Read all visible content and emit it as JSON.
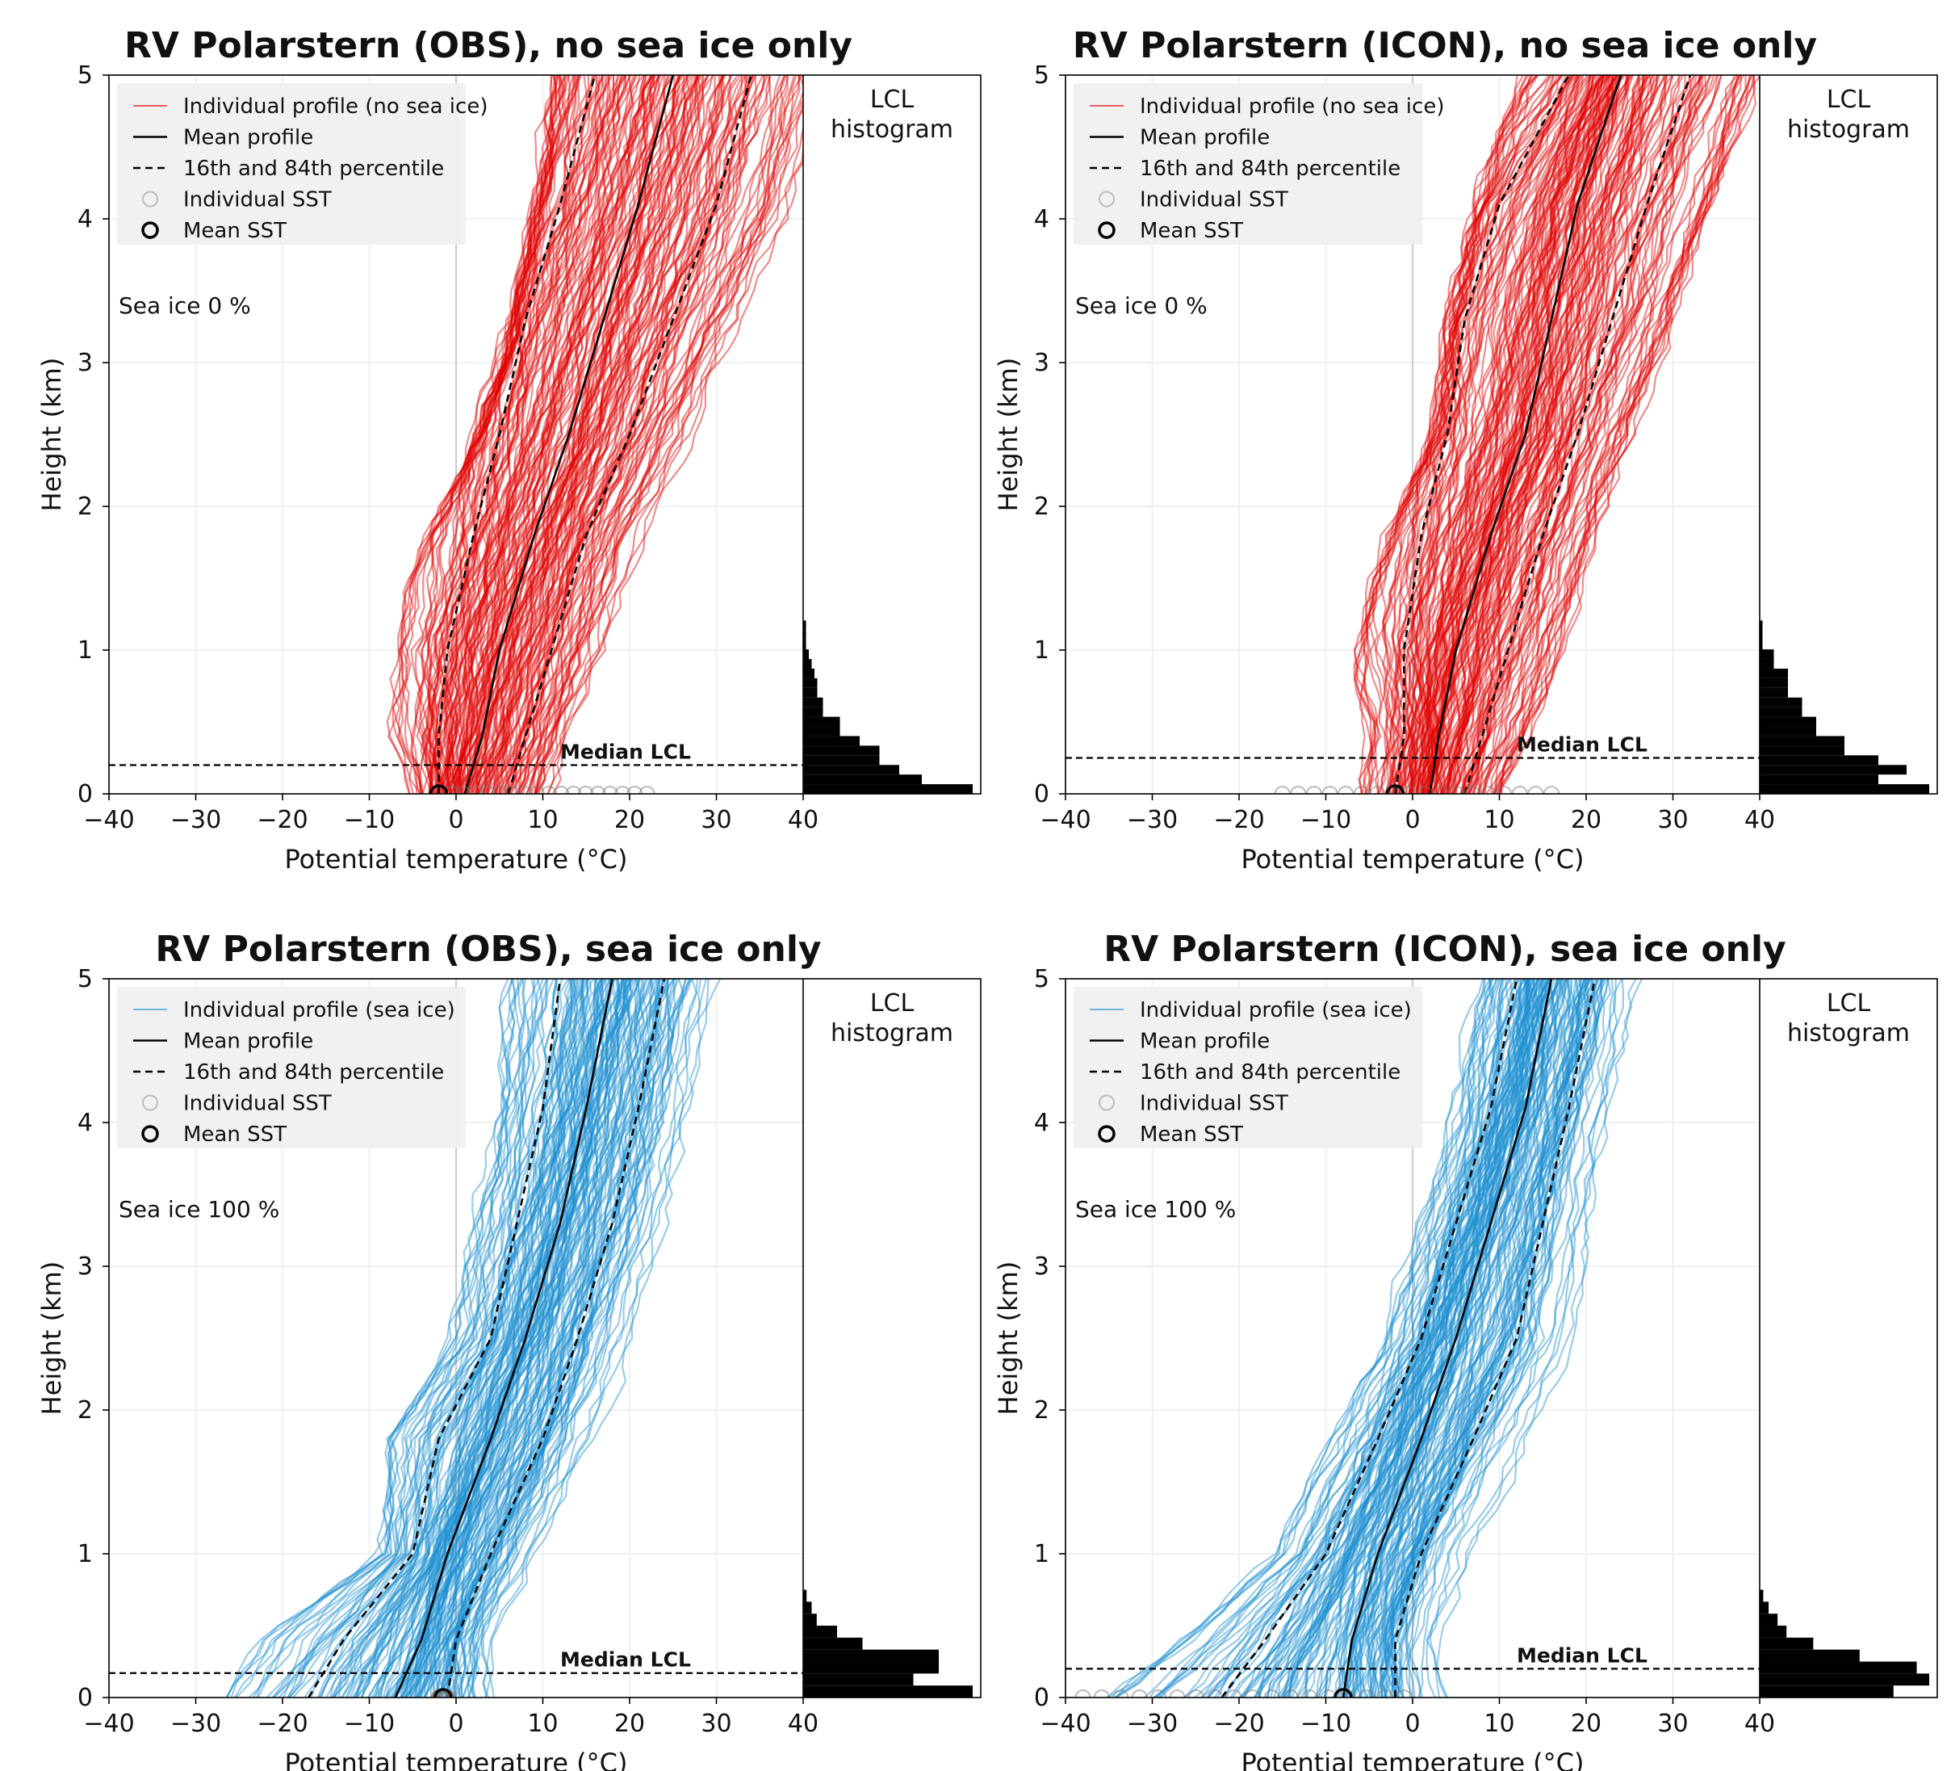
{
  "figure": {
    "panels": [
      {
        "id": "obs-no-ice",
        "title": "RV Polarstern (OBS), no sea ice only",
        "color": "#e00000",
        "legend": [
          "Individual profile (no sea ice)",
          "Mean profile",
          "16th and 84th percentile",
          "Individual SST",
          "Mean SST"
        ],
        "annotation": "Sea ice 0 %",
        "hist_label": [
          "LCL",
          "histogram"
        ],
        "median_label": "Median LCL",
        "xlabel": "Potential temperature (°C)",
        "ylabel": "Height (km)"
      },
      {
        "id": "icon-no-ice",
        "title": "RV Polarstern (ICON), no sea ice only",
        "color": "#e00000",
        "legend": [
          "Individual profile (no sea ice)",
          "Mean profile",
          "16th and 84th percentile",
          "Individual SST",
          "Mean SST"
        ],
        "annotation": "Sea ice 0 %",
        "hist_label": [
          "LCL",
          "histogram"
        ],
        "median_label": "Median LCL",
        "xlabel": "Potential temperature (°C)",
        "ylabel": "Height (km)"
      },
      {
        "id": "obs-ice",
        "title": "RV Polarstern (OBS), sea ice only",
        "color": "#1a8fd0",
        "legend": [
          "Individual profile (sea ice)",
          "Mean profile",
          "16th and 84th percentile",
          "Individual SST",
          "Mean SST"
        ],
        "annotation": "Sea ice 100 %",
        "hist_label": [
          "LCL",
          "histogram"
        ],
        "median_label": "Median LCL",
        "xlabel": "Potential temperature (°C)",
        "ylabel": "Height (km)"
      },
      {
        "id": "icon-ice",
        "title": "RV Polarstern (ICON), sea ice only",
        "color": "#1a8fd0",
        "legend": [
          "Individual profile (sea ice)",
          "Mean profile",
          "16th and 84th percentile",
          "Individual SST",
          "Mean SST"
        ],
        "annotation": "Sea ice 100 %",
        "hist_label": [
          "LCL",
          "histogram"
        ],
        "median_label": "Median LCL",
        "xlabel": "Potential temperature (°C)",
        "ylabel": "Height (km)"
      }
    ]
  },
  "chart_data": [
    {
      "type": "line",
      "title": "RV Polarstern (OBS), no sea ice only",
      "xlabel": "Potential temperature (°C)",
      "ylabel": "Height (km)",
      "xlim": [
        -40,
        40
      ],
      "ylim": [
        0,
        5
      ],
      "xticks": [
        -40,
        -30,
        -20,
        -10,
        0,
        10,
        20,
        30,
        40
      ],
      "yticks": [
        0,
        1,
        2,
        3,
        4,
        5
      ],
      "grid": true,
      "legend_position": "top-left",
      "series": [
        {
          "name": "Mean profile",
          "style": "solid",
          "x": [
            1,
            3,
            5,
            9,
            13,
            17,
            21,
            25
          ],
          "y": [
            0,
            0.4,
            1,
            1.8,
            2.5,
            3.3,
            4.1,
            5
          ]
        },
        {
          "name": "16th and 84th percentile",
          "style": "dashed",
          "x": [
            -2,
            -2,
            -1,
            2,
            5,
            8,
            12,
            16
          ],
          "y": [
            0,
            0.4,
            1,
            1.8,
            2.5,
            3.3,
            4.1,
            5
          ]
        },
        {
          "name": "16th and 84th percentile",
          "style": "dashed",
          "x": [
            6,
            8,
            11,
            15,
            20,
            25,
            30,
            34
          ],
          "y": [
            0,
            0.4,
            1,
            1.8,
            2.5,
            3.3,
            4.1,
            5
          ]
        }
      ],
      "envelope": {
        "left_x": [
          -15,
          -12,
          -8,
          -3,
          3,
          7,
          10,
          12
        ],
        "right_x": [
          22,
          25,
          30,
          34,
          37,
          39,
          40,
          40
        ],
        "y": [
          0,
          0.4,
          1,
          1.8,
          2.5,
          3.3,
          4.1,
          5
        ]
      },
      "sst": {
        "individual_range": [
          -2,
          22
        ],
        "mean": -2
      },
      "median_lcl_km": 0.2,
      "lcl_histogram": {
        "bin_width_km": 0.067,
        "counts": [
          60,
          42,
          34,
          27,
          27,
          20,
          13,
          13,
          7,
          7,
          5,
          5,
          4,
          3,
          2,
          1,
          1,
          1
        ]
      }
    },
    {
      "type": "line",
      "title": "RV Polarstern (ICON), no sea ice only",
      "xlabel": "Potential temperature (°C)",
      "ylabel": "Height (km)",
      "xlim": [
        -40,
        40
      ],
      "ylim": [
        0,
        5
      ],
      "xticks": [
        -40,
        -30,
        -20,
        -10,
        0,
        10,
        20,
        30,
        40
      ],
      "yticks": [
        0,
        1,
        2,
        3,
        4,
        5
      ],
      "grid": true,
      "legend_position": "top-left",
      "series": [
        {
          "name": "Mean profile",
          "style": "solid",
          "x": [
            2,
            3,
            5,
            9,
            13,
            16,
            19,
            24
          ],
          "y": [
            0,
            0.4,
            1,
            1.8,
            2.5,
            3.3,
            4.1,
            5
          ]
        },
        {
          "name": "16th and 84th percentile",
          "style": "dashed",
          "x": [
            -2,
            -1,
            -1,
            1,
            4,
            6,
            10,
            18
          ],
          "y": [
            0,
            0.4,
            1,
            1.8,
            2.5,
            3.3,
            4.1,
            5
          ]
        },
        {
          "name": "16th and 84th percentile",
          "style": "dashed",
          "x": [
            6,
            8,
            11,
            15,
            19,
            23,
            27,
            32
          ],
          "y": [
            0,
            0.4,
            1,
            1.8,
            2.5,
            3.3,
            4.1,
            5
          ]
        }
      ],
      "envelope": {
        "left_x": [
          -10,
          -9,
          -6,
          -2,
          3,
          5,
          8,
          13
        ],
        "right_x": [
          16,
          20,
          27,
          33,
          37,
          39,
          40,
          40
        ],
        "y": [
          0,
          0.4,
          1,
          1.8,
          2.5,
          3.3,
          4.1,
          5
        ]
      },
      "sst": {
        "individual_range": [
          -15,
          16
        ],
        "mean": -2
      },
      "median_lcl_km": 0.25,
      "lcl_histogram": {
        "bin_width_km": 0.067,
        "counts": [
          60,
          42,
          52,
          42,
          30,
          30,
          20,
          20,
          15,
          15,
          10,
          10,
          10,
          5,
          5,
          1,
          1,
          1
        ]
      }
    },
    {
      "type": "line",
      "title": "RV Polarstern (OBS), sea ice only",
      "xlabel": "Potential temperature (°C)",
      "ylabel": "Height (km)",
      "xlim": [
        -40,
        40
      ],
      "ylim": [
        0,
        5
      ],
      "xticks": [
        -40,
        -30,
        -20,
        -10,
        0,
        10,
        20,
        30,
        40
      ],
      "yticks": [
        0,
        1,
        2,
        3,
        4,
        5
      ],
      "grid": true,
      "legend_position": "top-left",
      "series": [
        {
          "name": "Mean profile",
          "style": "solid",
          "x": [
            -7,
            -4,
            -1,
            4,
            8,
            12,
            15,
            18
          ],
          "y": [
            0,
            0.4,
            1,
            1.8,
            2.5,
            3.3,
            4.1,
            5
          ]
        },
        {
          "name": "16th and 84th percentile",
          "style": "dashed",
          "x": [
            -17,
            -13,
            -5,
            -2,
            4,
            7,
            10,
            12
          ],
          "y": [
            0,
            0.4,
            1,
            1.8,
            2.5,
            3.3,
            4.1,
            5
          ]
        },
        {
          "name": "16th and 84th percentile",
          "style": "dashed",
          "x": [
            -1,
            0,
            4,
            10,
            14,
            18,
            21,
            24
          ],
          "y": [
            0,
            0.4,
            1,
            1.8,
            2.5,
            3.3,
            4.1,
            5
          ]
        }
      ],
      "envelope": {
        "left_x": [
          -28,
          -27,
          -23,
          -20,
          -13,
          -10,
          -6,
          -2
        ],
        "right_x": [
          4,
          10,
          16,
          23,
          26,
          29,
          30,
          32
        ],
        "y": [
          0,
          0.4,
          1,
          1.8,
          2.5,
          3.3,
          4.1,
          5
        ]
      },
      "sst": {
        "individual_range": [
          -2,
          -1
        ],
        "mean": -1.5
      },
      "median_lcl_km": 0.17,
      "lcl_histogram": {
        "bin_width_km": 0.0833,
        "counts": [
          100,
          65,
          80,
          80,
          35,
          20,
          8,
          5,
          2
        ]
      }
    },
    {
      "type": "line",
      "title": "RV Polarstern (ICON), sea ice only",
      "xlabel": "Potential temperature (°C)",
      "ylabel": "Height (km)",
      "xlim": [
        -40,
        40
      ],
      "ylim": [
        0,
        5
      ],
      "xticks": [
        -40,
        -30,
        -20,
        -10,
        0,
        10,
        20,
        30,
        40
      ],
      "yticks": [
        0,
        1,
        2,
        3,
        4,
        5
      ],
      "grid": true,
      "legend_position": "top-left",
      "series": [
        {
          "name": "Mean profile",
          "style": "solid",
          "x": [
            -8,
            -7,
            -4,
            1,
            5,
            9,
            13,
            16
          ],
          "y": [
            0,
            0.4,
            1,
            1.8,
            2.5,
            3.3,
            4.1,
            5
          ]
        },
        {
          "name": "16th and 84th percentile",
          "style": "dashed",
          "x": [
            -22,
            -17,
            -10,
            -4,
            1,
            5,
            9,
            12
          ],
          "y": [
            0,
            0.4,
            1,
            1.8,
            2.5,
            3.3,
            4.1,
            5
          ]
        },
        {
          "name": "16th and 84th percentile",
          "style": "dashed",
          "x": [
            -2,
            -2,
            1,
            7,
            12,
            15,
            18,
            21
          ],
          "y": [
            0,
            0.4,
            1,
            1.8,
            2.5,
            3.3,
            4.1,
            5
          ]
        }
      ],
      "envelope": {
        "left_x": [
          -40,
          -35,
          -30,
          -22,
          -15,
          -10,
          -5,
          -2
        ],
        "right_x": [
          6,
          12,
          18,
          24,
          27,
          29,
          31,
          33
        ],
        "y": [
          0,
          0.4,
          1,
          1.8,
          2.5,
          3.3,
          4.1,
          5
        ]
      },
      "sst": {
        "individual_range": [
          -38,
          -1
        ],
        "mean": -8
      },
      "median_lcl_km": 0.2,
      "lcl_histogram": {
        "bin_width_km": 0.0833,
        "counts": [
          75,
          95,
          88,
          56,
          30,
          15,
          10,
          5,
          2
        ]
      }
    }
  ]
}
